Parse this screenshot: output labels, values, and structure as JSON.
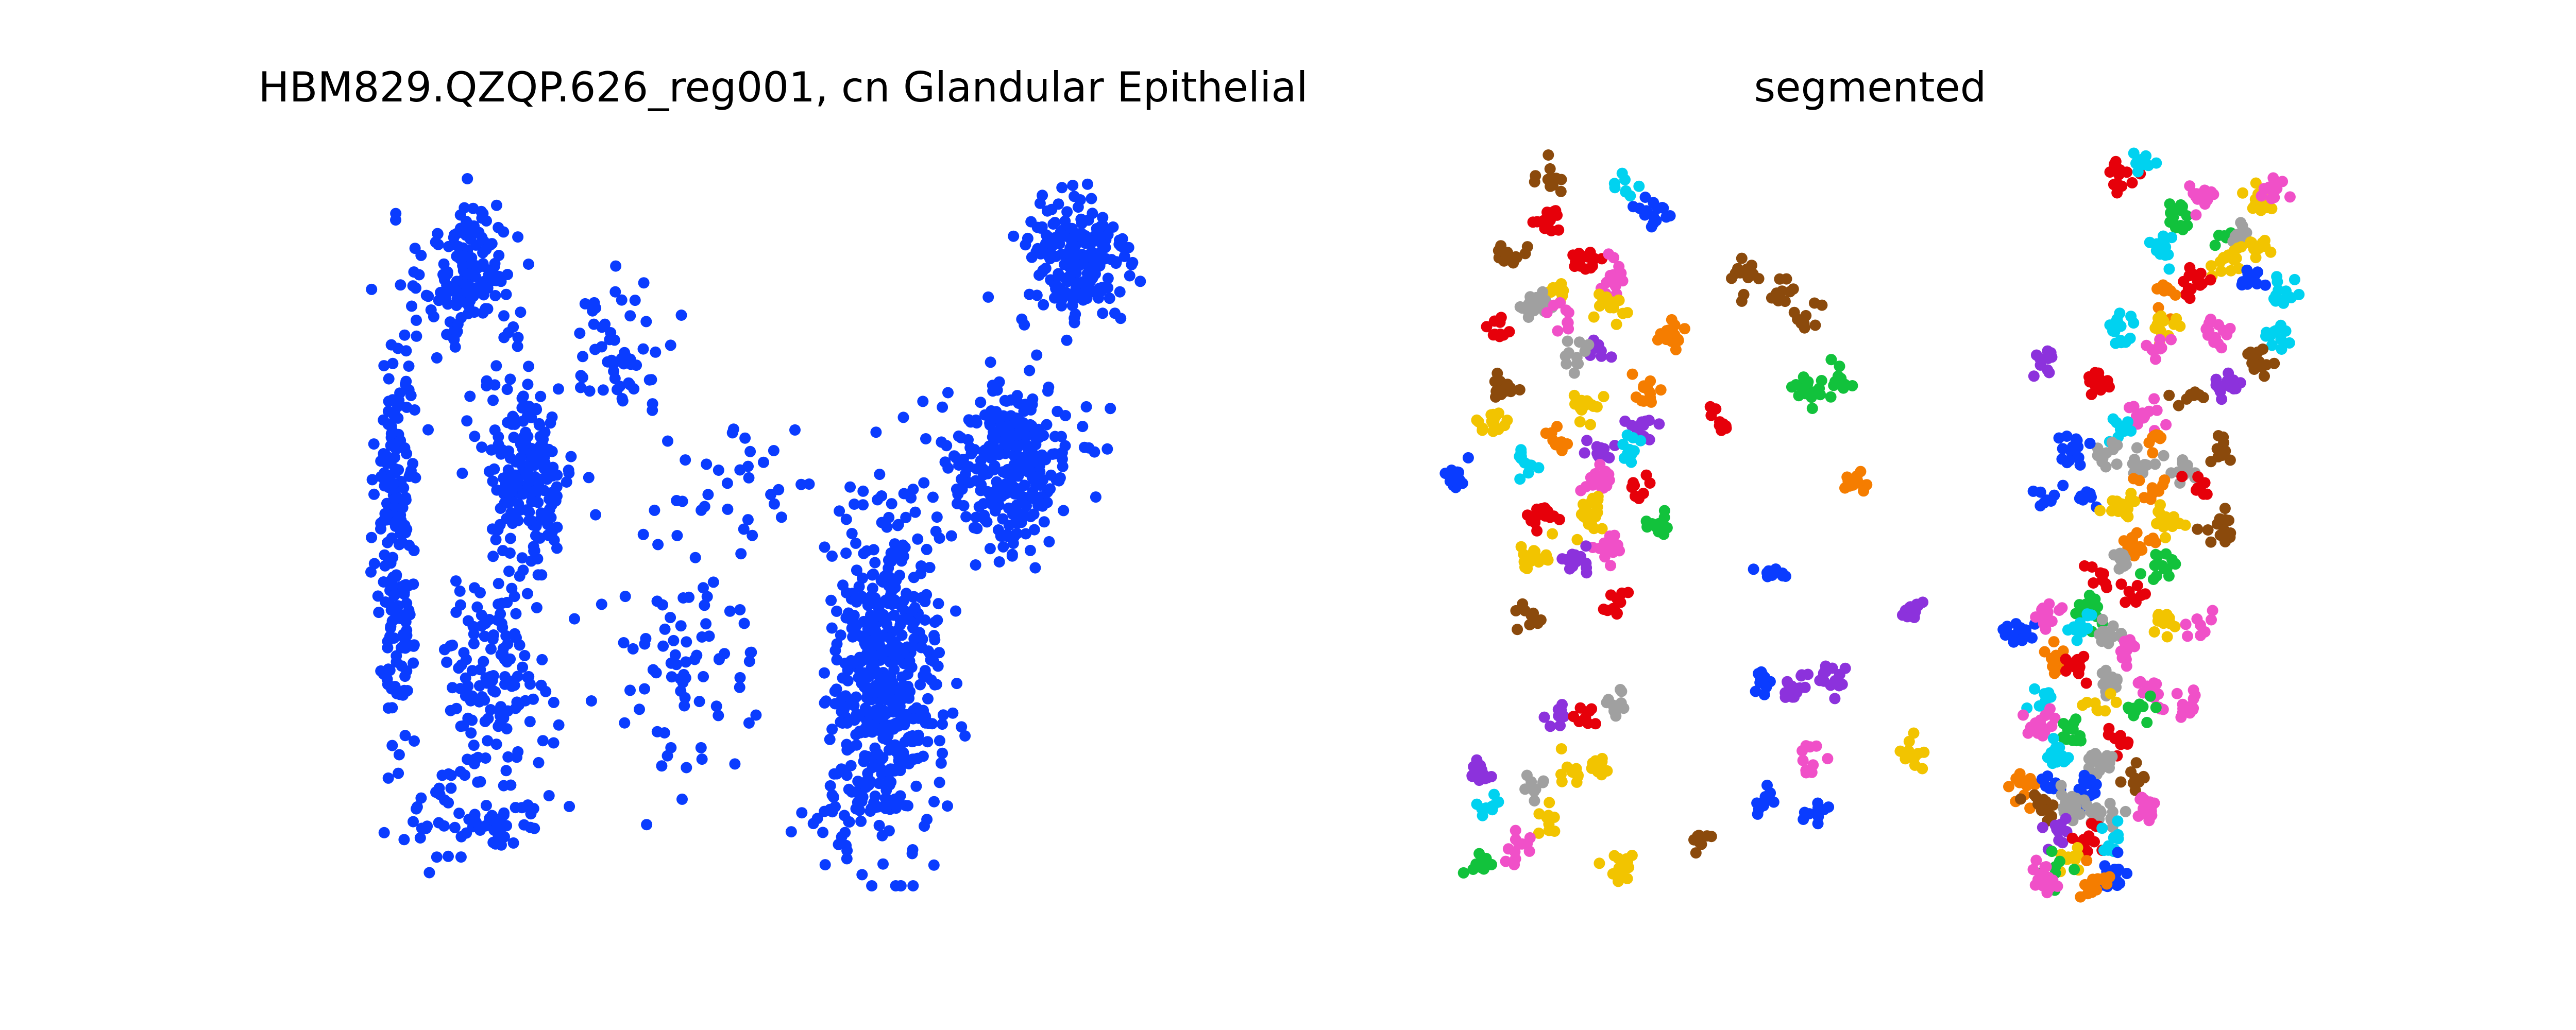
{
  "chart_data": [
    {
      "type": "scatter",
      "title": "HBM829.QZQP.626_reg001, cn Glandular Epithelial",
      "xlabel": "",
      "ylabel": "",
      "axes_visible": false,
      "xlim": [
        0,
        100
      ],
      "ylim": [
        0,
        100
      ],
      "point_color": "#0a3cff",
      "clusters": [
        {
          "cx": 3,
          "cy": 50,
          "sx": 2.2,
          "sy": 30,
          "n": 210
        },
        {
          "cx": 12,
          "cy": 84,
          "sx": 5,
          "sy": 9,
          "n": 150
        },
        {
          "cx": 19,
          "cy": 57,
          "sx": 5,
          "sy": 12,
          "n": 200
        },
        {
          "cx": 15,
          "cy": 30,
          "sx": 6,
          "sy": 12,
          "n": 130
        },
        {
          "cx": 13,
          "cy": 10,
          "sx": 7,
          "sy": 6,
          "n": 70
        },
        {
          "cx": 30,
          "cy": 74,
          "sx": 6,
          "sy": 8,
          "n": 55
        },
        {
          "cx": 38,
          "cy": 30,
          "sx": 9,
          "sy": 14,
          "n": 75
        },
        {
          "cx": 45,
          "cy": 55,
          "sx": 10,
          "sy": 9,
          "n": 35
        },
        {
          "cx": 62,
          "cy": 28,
          "sx": 6,
          "sy": 20,
          "n": 520
        },
        {
          "cx": 77,
          "cy": 58,
          "sx": 7,
          "sy": 10,
          "n": 290
        },
        {
          "cx": 85,
          "cy": 86,
          "sx": 6,
          "sy": 9,
          "n": 200
        },
        {
          "cx": 58,
          "cy": 10,
          "sx": 8,
          "sy": 4,
          "n": 25
        }
      ]
    },
    {
      "type": "scatter",
      "title": "segmented",
      "xlabel": "",
      "ylabel": "",
      "axes_visible": false,
      "xlim": [
        0,
        100
      ],
      "ylim": [
        0,
        100
      ],
      "palette": [
        "#e6000a",
        "#8b4a0c",
        "#f2c400",
        "#12c23c",
        "#00d2f0",
        "#f050c8",
        "#a0a0a0",
        "#0a3cff",
        "#f57d00",
        "#8c32dc"
      ],
      "blobs": [
        {
          "x": 9,
          "y": 98,
          "c": 1
        },
        {
          "x": 18,
          "y": 96,
          "c": 4
        },
        {
          "x": 22,
          "y": 93,
          "c": 7
        },
        {
          "x": 9,
          "y": 91,
          "c": 0
        },
        {
          "x": 4,
          "y": 87,
          "c": 1
        },
        {
          "x": 13,
          "y": 86,
          "c": 0
        },
        {
          "x": 17,
          "y": 84,
          "c": 5
        },
        {
          "x": 10,
          "y": 82,
          "c": 2
        },
        {
          "x": 7,
          "y": 80,
          "c": 6
        },
        {
          "x": 16,
          "y": 80,
          "c": 2
        },
        {
          "x": 10,
          "y": 78,
          "c": 5
        },
        {
          "x": 2,
          "y": 76,
          "c": 0
        },
        {
          "x": 15,
          "y": 74,
          "c": 9
        },
        {
          "x": 24,
          "y": 76,
          "c": 8
        },
        {
          "x": 12,
          "y": 73,
          "c": 6
        },
        {
          "x": 3,
          "y": 69,
          "c": 1
        },
        {
          "x": 21,
          "y": 68,
          "c": 8
        },
        {
          "x": 13,
          "y": 66,
          "c": 2
        },
        {
          "x": 20,
          "y": 63,
          "c": 9
        },
        {
          "x": 2,
          "y": 64,
          "c": 2
        },
        {
          "x": 10,
          "y": 61,
          "c": 8
        },
        {
          "x": 15,
          "y": 60,
          "c": 9
        },
        {
          "x": 19,
          "y": 60,
          "c": 4
        },
        {
          "x": 6,
          "y": 58,
          "c": 4
        },
        {
          "x": 15,
          "y": 56,
          "c": 5
        },
        {
          "x": 20,
          "y": 55,
          "c": 0
        },
        {
          "x": -3,
          "y": 56,
          "c": 7
        },
        {
          "x": 8,
          "y": 51,
          "c": 0
        },
        {
          "x": 14,
          "y": 52,
          "c": 2
        },
        {
          "x": 22,
          "y": 50,
          "c": 3
        },
        {
          "x": 14,
          "y": 49,
          "c": 2
        },
        {
          "x": 16,
          "y": 46,
          "c": 5
        },
        {
          "x": 12,
          "y": 45,
          "c": 9
        },
        {
          "x": 7,
          "y": 45,
          "c": 2
        },
        {
          "x": 17,
          "y": 38,
          "c": 0
        },
        {
          "x": 6,
          "y": 38,
          "c": 1
        },
        {
          "x": 10,
          "y": 24,
          "c": 9
        },
        {
          "x": 13,
          "y": 23,
          "c": 0
        },
        {
          "x": 17,
          "y": 25,
          "c": 6
        },
        {
          "x": 0,
          "y": 16,
          "c": 9
        },
        {
          "x": 7,
          "y": 14,
          "c": 6
        },
        {
          "x": 12,
          "y": 16,
          "c": 2
        },
        {
          "x": 15,
          "y": 16,
          "c": 2
        },
        {
          "x": 1,
          "y": 11,
          "c": 4
        },
        {
          "x": 8,
          "y": 9,
          "c": 2
        },
        {
          "x": 5,
          "y": 5,
          "c": 5
        },
        {
          "x": 0,
          "y": 3,
          "c": 3
        },
        {
          "x": 18,
          "y": 3,
          "c": 2
        },
        {
          "x": 28,
          "y": 6,
          "c": 1
        },
        {
          "x": 33,
          "y": 84,
          "c": 1
        },
        {
          "x": 38,
          "y": 82,
          "c": 1
        },
        {
          "x": 41,
          "y": 78,
          "c": 1
        },
        {
          "x": 45,
          "y": 70,
          "c": 3
        },
        {
          "x": 41,
          "y": 68,
          "c": 3
        },
        {
          "x": 30,
          "y": 64,
          "c": 0
        },
        {
          "x": 46,
          "y": 56,
          "c": 8
        },
        {
          "x": 37,
          "y": 43,
          "c": 7
        },
        {
          "x": 54,
          "y": 38,
          "c": 9
        },
        {
          "x": 67,
          "y": 35,
          "c": 7
        },
        {
          "x": 39,
          "y": 28,
          "c": 9
        },
        {
          "x": 44,
          "y": 28,
          "c": 9
        },
        {
          "x": 35,
          "y": 28,
          "c": 7
        },
        {
          "x": 42,
          "y": 18,
          "c": 5
        },
        {
          "x": 54,
          "y": 18,
          "c": 2
        },
        {
          "x": 36,
          "y": 12,
          "c": 7
        },
        {
          "x": 42,
          "y": 10,
          "c": 7
        },
        {
          "x": 68,
          "y": 14,
          "c": 8
        },
        {
          "x": 76,
          "y": 54,
          "c": 7
        },
        {
          "x": 71,
          "y": 54,
          "c": 7
        },
        {
          "x": 80,
          "y": 98,
          "c": 0
        },
        {
          "x": 83,
          "y": 100,
          "c": 4
        },
        {
          "x": 87,
          "y": 92,
          "c": 3
        },
        {
          "x": 90,
          "y": 95,
          "c": 5
        },
        {
          "x": 85,
          "y": 88,
          "c": 4
        },
        {
          "x": 93,
          "y": 89,
          "c": 3
        },
        {
          "x": 97,
          "y": 94,
          "c": 2
        },
        {
          "x": 99,
          "y": 96,
          "c": 5
        },
        {
          "x": 95,
          "y": 90,
          "c": 6
        },
        {
          "x": 97,
          "y": 88,
          "c": 2
        },
        {
          "x": 93,
          "y": 86,
          "c": 2
        },
        {
          "x": 96,
          "y": 83,
          "c": 7
        },
        {
          "x": 89,
          "y": 83,
          "c": 0
        },
        {
          "x": 86,
          "y": 82,
          "c": 8
        },
        {
          "x": 85,
          "y": 77,
          "c": 2
        },
        {
          "x": 80,
          "y": 77,
          "c": 4
        },
        {
          "x": 92,
          "y": 76,
          "c": 5
        },
        {
          "x": 99,
          "y": 76,
          "c": 4
        },
        {
          "x": 85,
          "y": 74,
          "c": 5
        },
        {
          "x": 71,
          "y": 72,
          "c": 9
        },
        {
          "x": 77,
          "y": 69,
          "c": 0
        },
        {
          "x": 89,
          "y": 67,
          "c": 1
        },
        {
          "x": 93,
          "y": 69,
          "c": 9
        },
        {
          "x": 83,
          "y": 65,
          "c": 5
        },
        {
          "x": 80,
          "y": 63,
          "c": 4
        },
        {
          "x": 85,
          "y": 61,
          "c": 8
        },
        {
          "x": 92,
          "y": 60,
          "c": 1
        },
        {
          "x": 78,
          "y": 60,
          "c": 6
        },
        {
          "x": 74,
          "y": 60,
          "c": 7
        },
        {
          "x": 82,
          "y": 58,
          "c": 6
        },
        {
          "x": 87,
          "y": 57,
          "c": 6
        },
        {
          "x": 90,
          "y": 55,
          "c": 0
        },
        {
          "x": 84,
          "y": 55,
          "c": 8
        },
        {
          "x": 80,
          "y": 52,
          "c": 2
        },
        {
          "x": 86,
          "y": 50,
          "c": 2
        },
        {
          "x": 92,
          "y": 49,
          "c": 1
        },
        {
          "x": 82,
          "y": 47,
          "c": 8
        },
        {
          "x": 80,
          "y": 45,
          "c": 6
        },
        {
          "x": 85,
          "y": 44,
          "c": 3
        },
        {
          "x": 78,
          "y": 43,
          "c": 0
        },
        {
          "x": 81,
          "y": 40,
          "c": 0
        },
        {
          "x": 76,
          "y": 38,
          "c": 3
        },
        {
          "x": 71,
          "y": 37,
          "c": 5
        },
        {
          "x": 75,
          "y": 36,
          "c": 4
        },
        {
          "x": 79,
          "y": 35,
          "c": 6
        },
        {
          "x": 85,
          "y": 36,
          "c": 2
        },
        {
          "x": 81,
          "y": 32,
          "c": 5
        },
        {
          "x": 72,
          "y": 31,
          "c": 8
        },
        {
          "x": 74,
          "y": 30,
          "c": 0
        },
        {
          "x": 79,
          "y": 28,
          "c": 6
        },
        {
          "x": 84,
          "y": 27,
          "c": 5
        },
        {
          "x": 70,
          "y": 26,
          "c": 4
        },
        {
          "x": 77,
          "y": 25,
          "c": 2
        },
        {
          "x": 82,
          "y": 24,
          "c": 3
        },
        {
          "x": 70,
          "y": 22,
          "c": 5
        },
        {
          "x": 74,
          "y": 21,
          "c": 3
        },
        {
          "x": 80,
          "y": 20,
          "c": 0
        },
        {
          "x": 72,
          "y": 18,
          "c": 4
        },
        {
          "x": 77,
          "y": 17,
          "c": 6
        },
        {
          "x": 71,
          "y": 14,
          "c": 7
        },
        {
          "x": 76,
          "y": 13,
          "c": 7
        },
        {
          "x": 82,
          "y": 14,
          "c": 1
        },
        {
          "x": 70,
          "y": 11,
          "c": 1
        },
        {
          "x": 74,
          "y": 11,
          "c": 6
        },
        {
          "x": 78,
          "y": 10,
          "c": 6
        },
        {
          "x": 83,
          "y": 11,
          "c": 5
        },
        {
          "x": 72,
          "y": 8,
          "c": 9
        },
        {
          "x": 76,
          "y": 7,
          "c": 0
        },
        {
          "x": 79,
          "y": 6,
          "c": 4
        },
        {
          "x": 74,
          "y": 4,
          "c": 2
        },
        {
          "x": 79,
          "y": 2,
          "c": 7
        },
        {
          "x": 72,
          "y": 2,
          "c": 3
        },
        {
          "x": 77,
          "y": 1,
          "c": 8
        },
        {
          "x": 70,
          "y": 1,
          "c": 5
        },
        {
          "x": 97,
          "y": 72,
          "c": 1
        },
        {
          "x": 100,
          "y": 82,
          "c": 4
        },
        {
          "x": 88,
          "y": 25,
          "c": 5
        },
        {
          "x": 90,
          "y": 36,
          "c": 5
        }
      ]
    }
  ]
}
